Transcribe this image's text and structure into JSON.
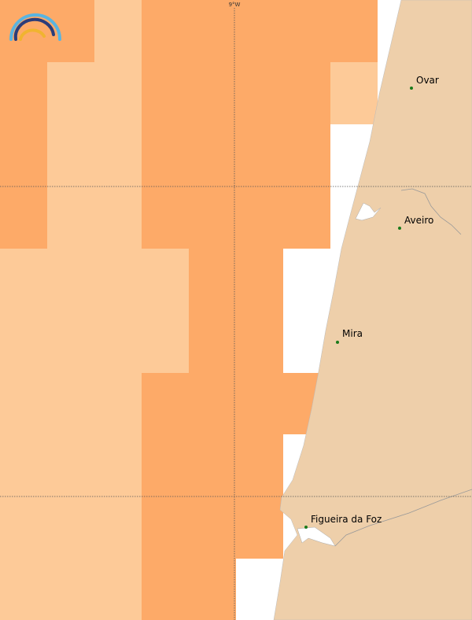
{
  "map": {
    "graticule_label": "9°W",
    "places": [
      {
        "name": "Ovar"
      },
      {
        "name": "Aveiro"
      },
      {
        "name": "Mira"
      },
      {
        "name": "Figueira da Foz"
      }
    ]
  }
}
